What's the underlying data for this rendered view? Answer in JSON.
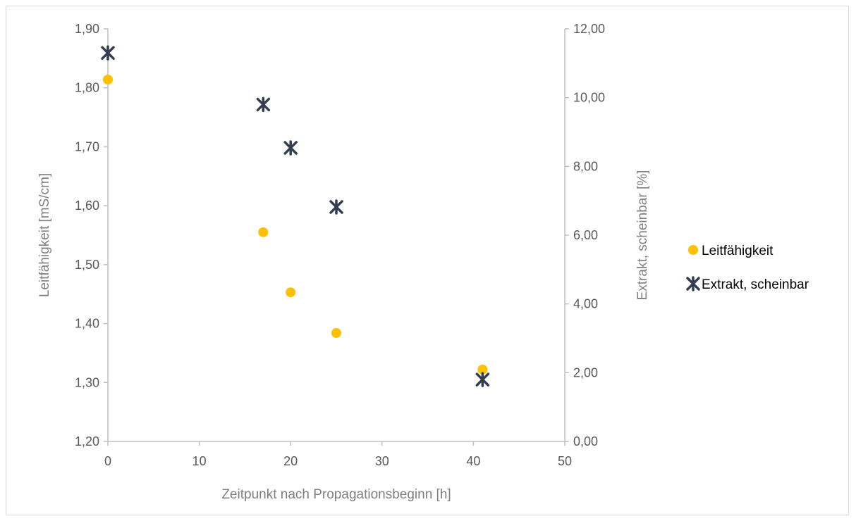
{
  "chart_data": {
    "type": "scatter",
    "x_axis": {
      "label": "Zeitpunkt nach Propagationsbeginn [h]",
      "min": 0,
      "max": 50,
      "step": 10,
      "tick_labels": [
        "0",
        "10",
        "20",
        "30",
        "40",
        "50"
      ]
    },
    "y_axis_left": {
      "label": "Leitfähigkeit [mS/cm]",
      "min": 1.2,
      "max": 1.9,
      "step": 0.1,
      "tick_labels": [
        "1,20",
        "1,30",
        "1,40",
        "1,50",
        "1,60",
        "1,70",
        "1,80",
        "1,90"
      ]
    },
    "y_axis_right": {
      "label": "Extrakt, scheinbar [%]",
      "min": 0,
      "max": 12,
      "step": 2,
      "tick_labels": [
        "0,00",
        "2,00",
        "4,00",
        "6,00",
        "8,00",
        "10,00",
        "12,00"
      ]
    },
    "series": [
      {
        "name": "Leitfähigkeit",
        "axis": "left",
        "marker": "circle",
        "color": "#FFC000",
        "x": [
          0,
          17,
          20,
          25,
          41
        ],
        "y": [
          1.814,
          1.555,
          1.453,
          1.384,
          1.322
        ]
      },
      {
        "name": "Extrakt, scheinbar",
        "axis": "right",
        "marker": "star-x",
        "color": "#333F50",
        "x": [
          0,
          17,
          20,
          25,
          41
        ],
        "y": [
          11.3,
          9.8,
          8.54,
          6.82,
          1.8
        ]
      }
    ],
    "legend_position": "right",
    "grid": false
  }
}
